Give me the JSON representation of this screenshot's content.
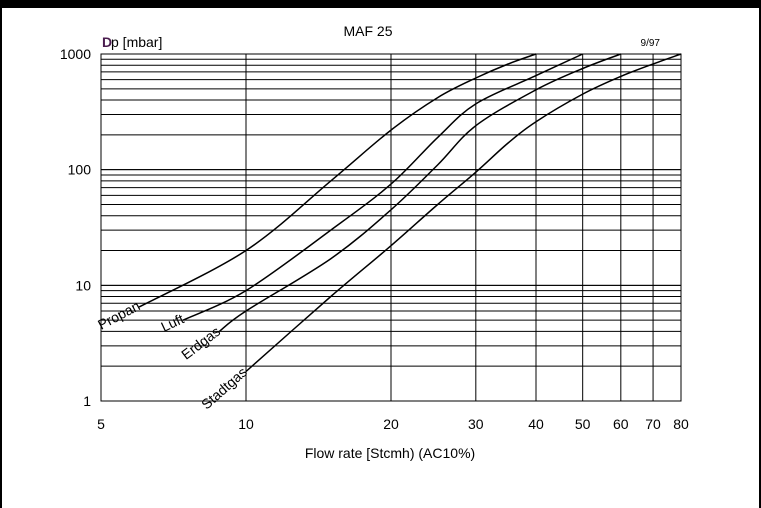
{
  "chart_data": {
    "type": "line",
    "title": "MAF 25",
    "date_note": "9/97",
    "ylabel_symbol": "D",
    "ylabel": "p [mbar]",
    "xlabel": "Flow rate [Stcmh) (AC10%)",
    "x_scale": "log",
    "y_scale": "log",
    "xlim": [
      5,
      80
    ],
    "ylim": [
      1,
      1000
    ],
    "grid": true,
    "x_ticks": [
      5,
      10,
      20,
      30,
      40,
      50,
      60,
      70,
      80
    ],
    "x_tick_labels": [
      "5",
      "10",
      "20",
      "30",
      "40",
      "50",
      "60",
      "70",
      "80"
    ],
    "y_ticks": [
      1,
      10,
      100,
      1000
    ],
    "y_tick_labels": [
      "1",
      "10",
      "100",
      "1000"
    ],
    "series": [
      {
        "name": "Propan",
        "x": [
          6.0,
          10,
          15,
          20,
          25,
          30,
          35,
          40
        ],
        "y": [
          6.5,
          20,
          80,
          220,
          420,
          620,
          820,
          1000
        ]
      },
      {
        "name": "Luft",
        "x": [
          7.4,
          10,
          15,
          20,
          25,
          30,
          40,
          50
        ],
        "y": [
          5,
          9,
          30,
          75,
          190,
          370,
          650,
          1000
        ]
      },
      {
        "name": "Erdgas",
        "x": [
          8.8,
          10,
          15,
          20,
          25,
          30,
          40,
          50,
          60
        ],
        "y": [
          4,
          6,
          17,
          45,
          110,
          240,
          490,
          750,
          1000
        ]
      },
      {
        "name": "Stadtgas",
        "x": [
          10,
          15,
          20,
          25,
          30,
          35,
          40,
          50,
          60,
          70,
          80
        ],
        "y": [
          1.8,
          8,
          22,
          50,
          95,
          170,
          260,
          450,
          640,
          820,
          1000
        ]
      }
    ]
  }
}
